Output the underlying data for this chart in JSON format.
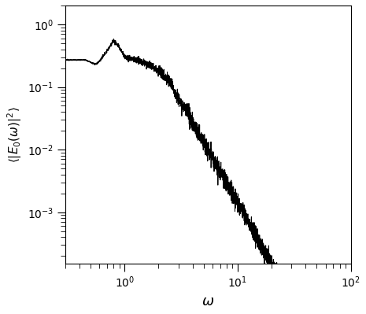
{
  "xlabel": "$\\omega$",
  "ylabel": "$\\langle |E_0(\\omega)|^2 \\rangle$",
  "xlim": [
    0.3,
    100
  ],
  "ylim": [
    0.00015,
    2.0
  ],
  "line_color": "#000000",
  "line_width": 0.7,
  "background_color": "#ffffff",
  "seed": 12345,
  "yticks": [
    0.001,
    0.01,
    0.1,
    1.0
  ],
  "xticks": [
    1,
    10,
    100
  ],
  "figsize": [
    4.65,
    3.99
  ],
  "dpi": 100
}
